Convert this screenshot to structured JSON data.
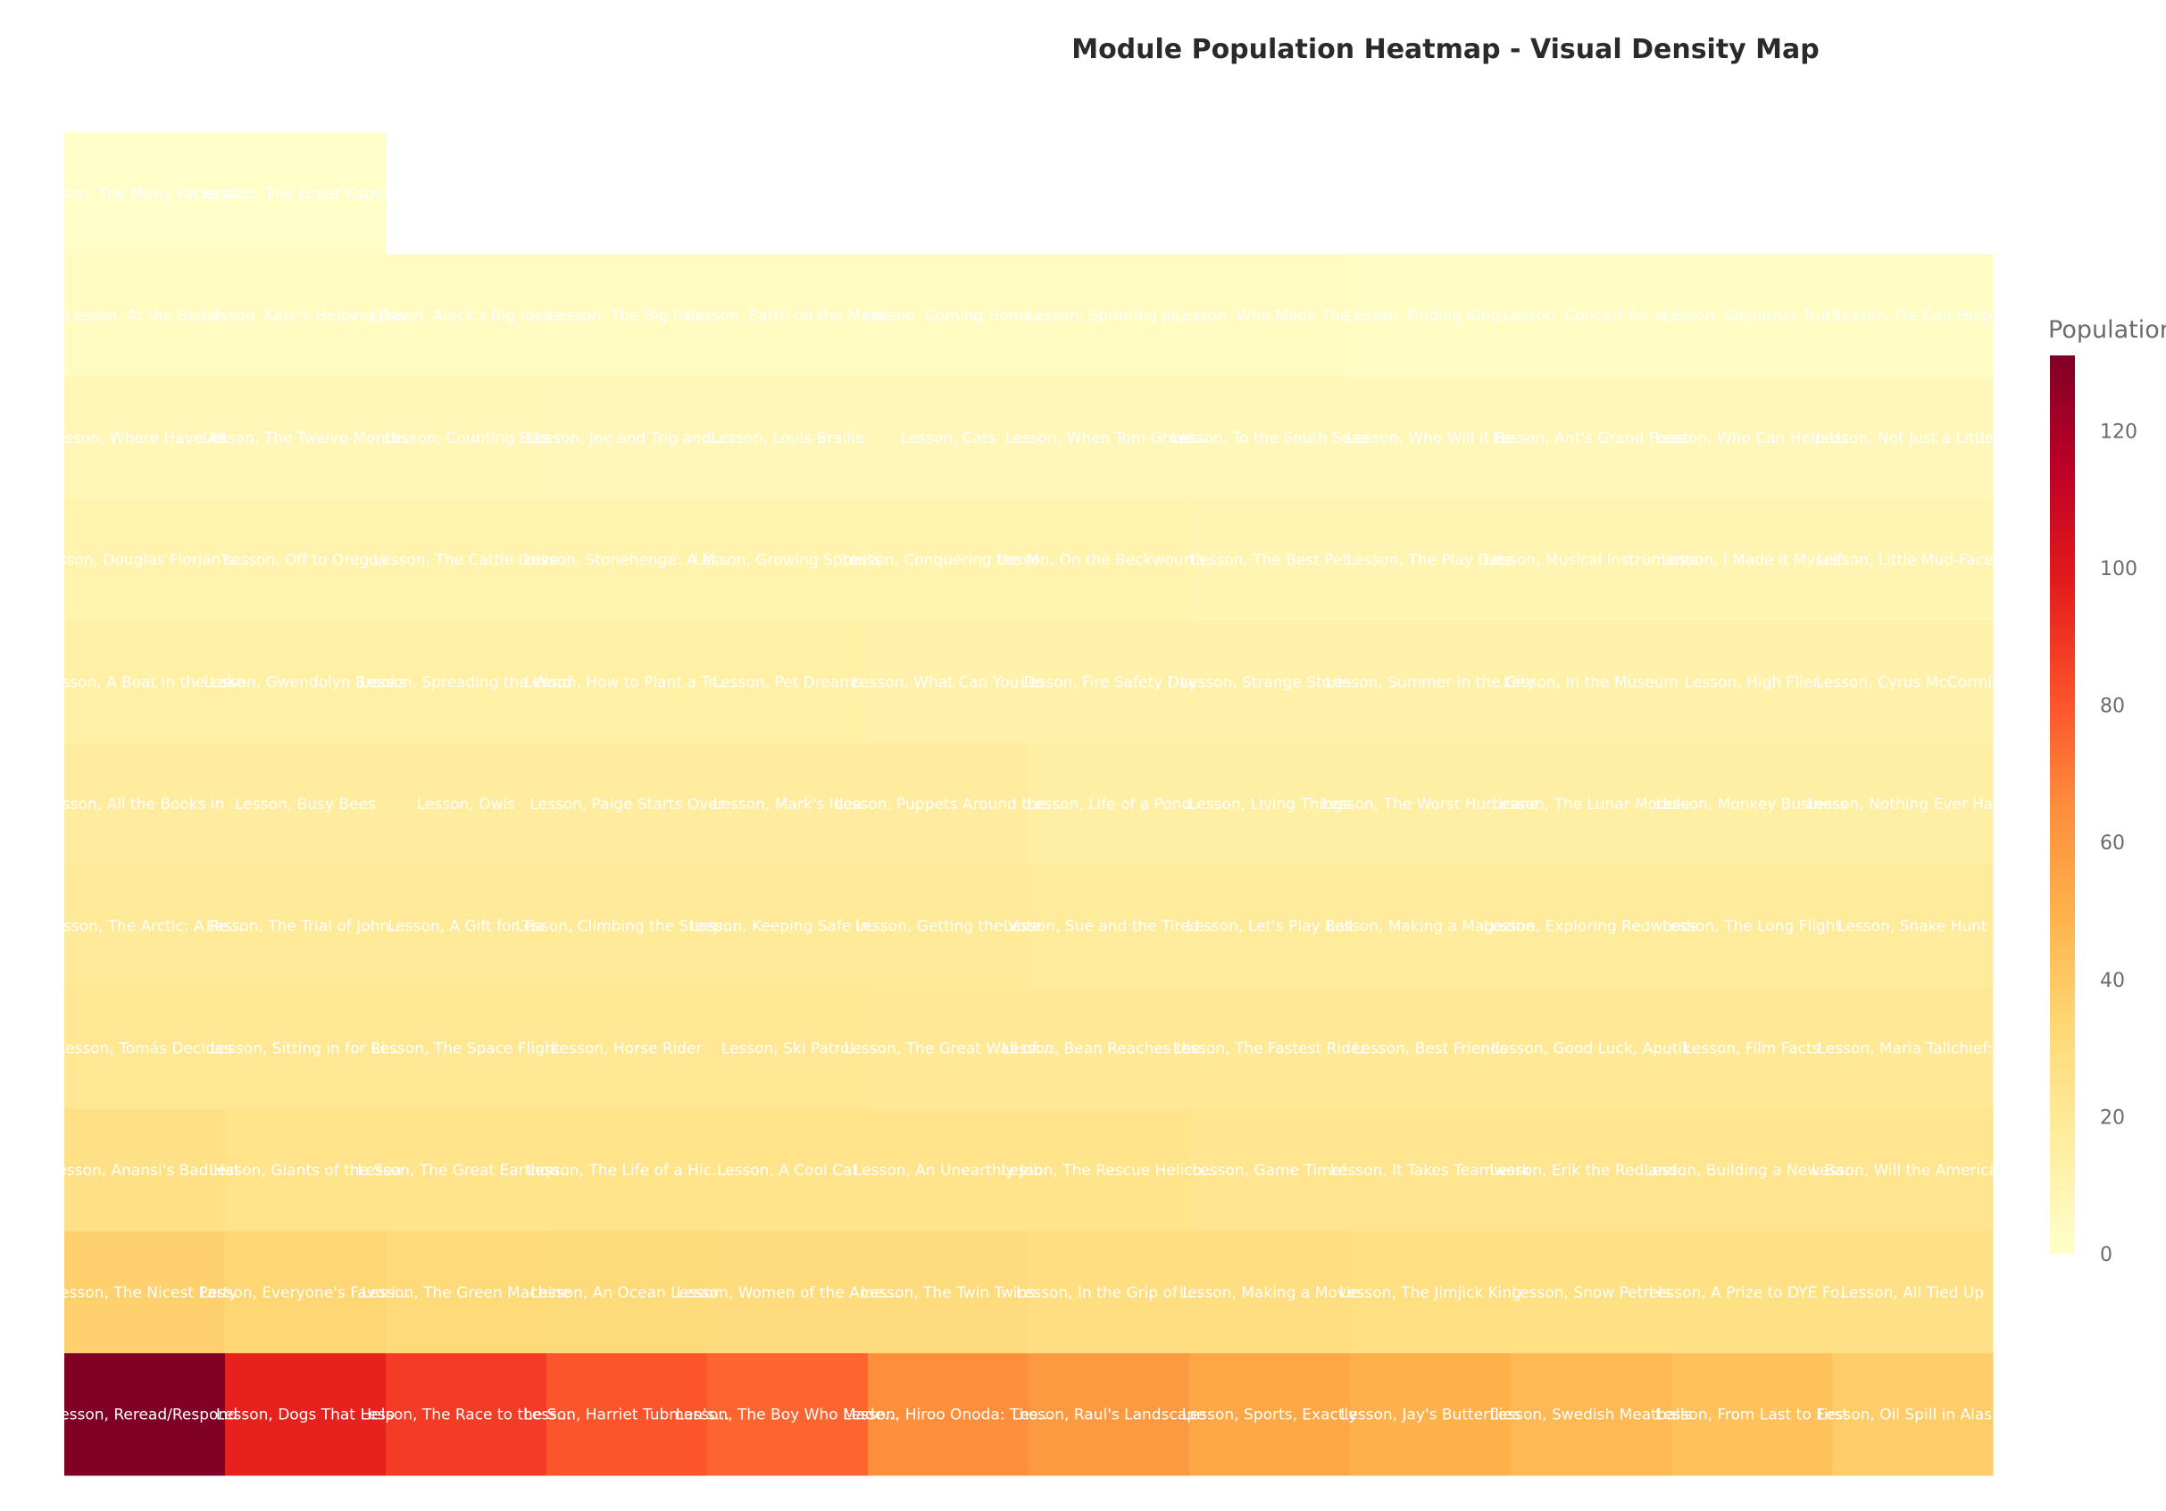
{
  "chart_data": {
    "type": "heatmap",
    "title": "Module Population Heatmap - Visual Density Map",
    "colorscale": [
      "#ffffcc",
      "#ffeda0",
      "#fed976",
      "#feb24c",
      "#fd8d3c",
      "#fc4e2a",
      "#e31a1c",
      "#bd0026",
      "#800026"
    ],
    "zlim": [
      0,
      131
    ],
    "colorbar": {
      "title": "Population",
      "ticks": [
        0,
        20,
        40,
        60,
        80,
        100,
        120
      ]
    },
    "rows": [
      {
        "labels": [
          "Lesson, The Many Faces of…",
          "Lesson, The Great Kapok…"
        ],
        "values": [
          1,
          1
        ]
      },
      {
        "labels": [
          "Lesson, At the Beach",
          "Lesson, Kate's Helping Day",
          "Lesson, Aleck's Big Ideas",
          "Lesson, The Big Grin",
          "Lesson, Earth on the Move",
          "Lesson, Coming Home",
          "Lesson, Sprinting Jo…",
          "Lesson, Who Made The…",
          "Lesson, Finding King…",
          "Lesson, Concert for a…",
          "Lesson, Sojourner Truth",
          "Lesson, Pie Can Help"
        ],
        "values": [
          4,
          4,
          4,
          4,
          4,
          4,
          4,
          4,
          3,
          3,
          3,
          3
        ]
      },
      {
        "labels": [
          "Lesson, Where Have All…",
          "Lesson, The Twelve Months",
          "Lesson, Counting Bits",
          "Lesson, Joe and Trig and…",
          "Lesson, Louis Braille",
          "Lesson, Cats",
          "Lesson, When Tom Grows…",
          "Lesson, To the South Seas",
          "Lesson, Who Will It Be",
          "Lesson, Ant's Grand Feast",
          "Lesson, Who Can Help Us",
          "Lesson, Not Just a Little…"
        ],
        "values": [
          8,
          8,
          8,
          7,
          7,
          7,
          7,
          7,
          7,
          7,
          7,
          7
        ]
      },
      {
        "labels": [
          "Lesson, Douglas Florian's…",
          "Lesson, Off to Oregon",
          "Lesson, The Cattle Drive",
          "Lesson, Stonehenge: A M…",
          "Lesson, Growing Sprouts",
          "Lesson, Conquering the M…",
          "Lesson, On the Beckwourth…",
          "Lesson, The Best Pet",
          "Lesson, The Play Date",
          "Lesson, Musical Instruments",
          "Lesson, I Made it Myself",
          "Lesson, Little Mud-Face…"
        ],
        "values": [
          11,
          11,
          11,
          11,
          11,
          11,
          11,
          10,
          10,
          10,
          10,
          10
        ]
      },
      {
        "labels": [
          "Lesson, A Boat in the Lake",
          "Lesson, Gwendolyn Brooks",
          "Lesson, Spreading the Word",
          "Lesson, How to Plant a Tr…",
          "Lesson, Pet Dreams",
          "Lesson, What Can You Do",
          "Lesson, Fire Safety Day",
          "Lesson, Strange Stories",
          "Lesson, Summer in the City",
          "Lesson, In the Museum",
          "Lesson, High Flier",
          "Lesson, Cyrus McCormick"
        ],
        "values": [
          14,
          14,
          14,
          14,
          14,
          13,
          13,
          13,
          13,
          13,
          13,
          13
        ]
      },
      {
        "labels": [
          "Lesson, All the Books in …",
          "Lesson, Busy Bees",
          "Lesson, Owls",
          "Lesson, Paige Starts Over",
          "Lesson, Mark's Idea",
          "Lesson, Puppets Around the…",
          "Lesson, Life of a Pond",
          "Lesson, Living Things",
          "Lesson, The Worst Hurricane",
          "Lesson, The Lunar Module",
          "Lesson, Monkey Business",
          "Lesson, Nothing Ever Hap…"
        ],
        "values": [
          17,
          17,
          17,
          17,
          17,
          17,
          15,
          15,
          15,
          15,
          15,
          15
        ]
      },
      {
        "labels": [
          "Lesson, The Arctic: A Re…",
          "Lesson, The Trial of John…",
          "Lesson, A Gift for Tia",
          "Lesson, Climbing the Steep…",
          "Lesson, Keeping Safe in…",
          "Lesson, Getting the Vote",
          "Lesson, Sue and the Tired…",
          "Lesson, Let's Play Ball",
          "Lesson, Making a Magazine",
          "Lesson, Exploring Redwoods",
          "Lesson, The Long Flight",
          "Lesson, Snake Hunt"
        ],
        "values": [
          19,
          19,
          19,
          19,
          19,
          19,
          18,
          18,
          18,
          18,
          18,
          18
        ]
      },
      {
        "labels": [
          "Lesson, Tomás Decides",
          "Lesson, Sitting in for Ri…",
          "Lesson, The Space Flight",
          "Lesson, Horse Rider",
          "Lesson, Ski Patrol",
          "Lesson, The Great Wall of…",
          "Lesson, Bean Reaches the…",
          "Lesson, The Fastest Rider",
          "Lesson, Best Friends",
          "Lesson, Good Luck, Aputik",
          "Lesson, Film Facts",
          "Lesson, Maria Tallchief:…"
        ],
        "values": [
          21,
          21,
          21,
          21,
          21,
          20,
          20,
          20,
          20,
          20,
          20,
          20
        ]
      },
      {
        "labels": [
          "Lesson, Anansi's Bad Hat",
          "Lesson, Giants of the Sea",
          "Lesson, The Great Earthqu…",
          "Lesson, The Life of a Hic…",
          "Lesson, A Cool Cat",
          "Lesson, An Unearthly Job",
          "Lesson, The Rescue Helico…",
          "Lesson, Game Time!",
          "Lesson, It Takes Teamwork",
          "Lesson, Erik the Red and…",
          "Lesson, Building a New Ba…",
          "Lesson, Will the America…"
        ],
        "values": [
          26,
          24,
          24,
          24,
          24,
          24,
          24,
          23,
          23,
          23,
          23,
          23
        ]
      },
      {
        "labels": [
          "Lesson, The Nicest Party",
          "Lesson, Everyone's Favori…",
          "Lesson, The Green Machine",
          "Lesson, An Ocean Lesson",
          "Lesson, Women of the Ame…",
          "Lesson, The Twin Twins",
          "Lesson, In the Grip of I…",
          "Lesson, Making a Movie",
          "Lesson, The Jimjick King",
          "Lesson, Snow Petrels",
          "Lesson, A Prize to DYE Fo…",
          "Lesson, All Tied Up"
        ],
        "values": [
          36,
          34,
          32,
          31,
          30,
          30,
          29,
          29,
          28,
          27,
          27,
          26
        ]
      },
      {
        "labels": [
          "Lesson, Reread/Respond",
          "Lesson, Dogs That Help",
          "Lesson, The Race to the S…",
          "Lesson, Harriet Tubman's…",
          "Lesson, The Boy Who Made…",
          "Lesson, Hiroo Onoda: The…",
          "Lesson, Raul's Landscape",
          "Lesson, Sports, Exactly",
          "Lesson, Jay's Butterflies",
          "Lesson, Swedish Meatballs",
          "Lesson, From Last to First",
          "Lesson, Oil Spill in Alas…"
        ],
        "values": [
          131,
          96,
          88,
          80,
          76,
          65,
          60,
          54,
          50,
          46,
          43,
          38
        ]
      }
    ]
  }
}
